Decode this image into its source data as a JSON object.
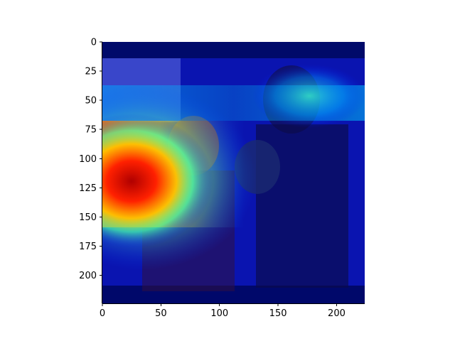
{
  "chart_data": {
    "type": "heatmap",
    "title": "",
    "xlabel": "",
    "ylabel": "",
    "xlim": [
      0,
      224
    ],
    "ylim": [
      224,
      0
    ],
    "x_ticks": [
      0,
      50,
      100,
      150,
      200
    ],
    "y_ticks": [
      0,
      25,
      50,
      75,
      100,
      125,
      150,
      175,
      200
    ],
    "x_tick_labels": [
      "0",
      "50",
      "100",
      "150",
      "200"
    ],
    "y_tick_labels": [
      "0",
      "25",
      "50",
      "75",
      "100",
      "125",
      "150",
      "175",
      "200"
    ],
    "colormap": "jet",
    "grid": false,
    "overlay": "photograph of two men at a podium with activation heatmap",
    "hotspots": [
      {
        "x": 25,
        "y": 120,
        "intensity": 1.0
      },
      {
        "x": 90,
        "y": 110,
        "intensity": 0.6
      },
      {
        "x": 170,
        "y": 45,
        "intensity": 0.45
      }
    ]
  }
}
